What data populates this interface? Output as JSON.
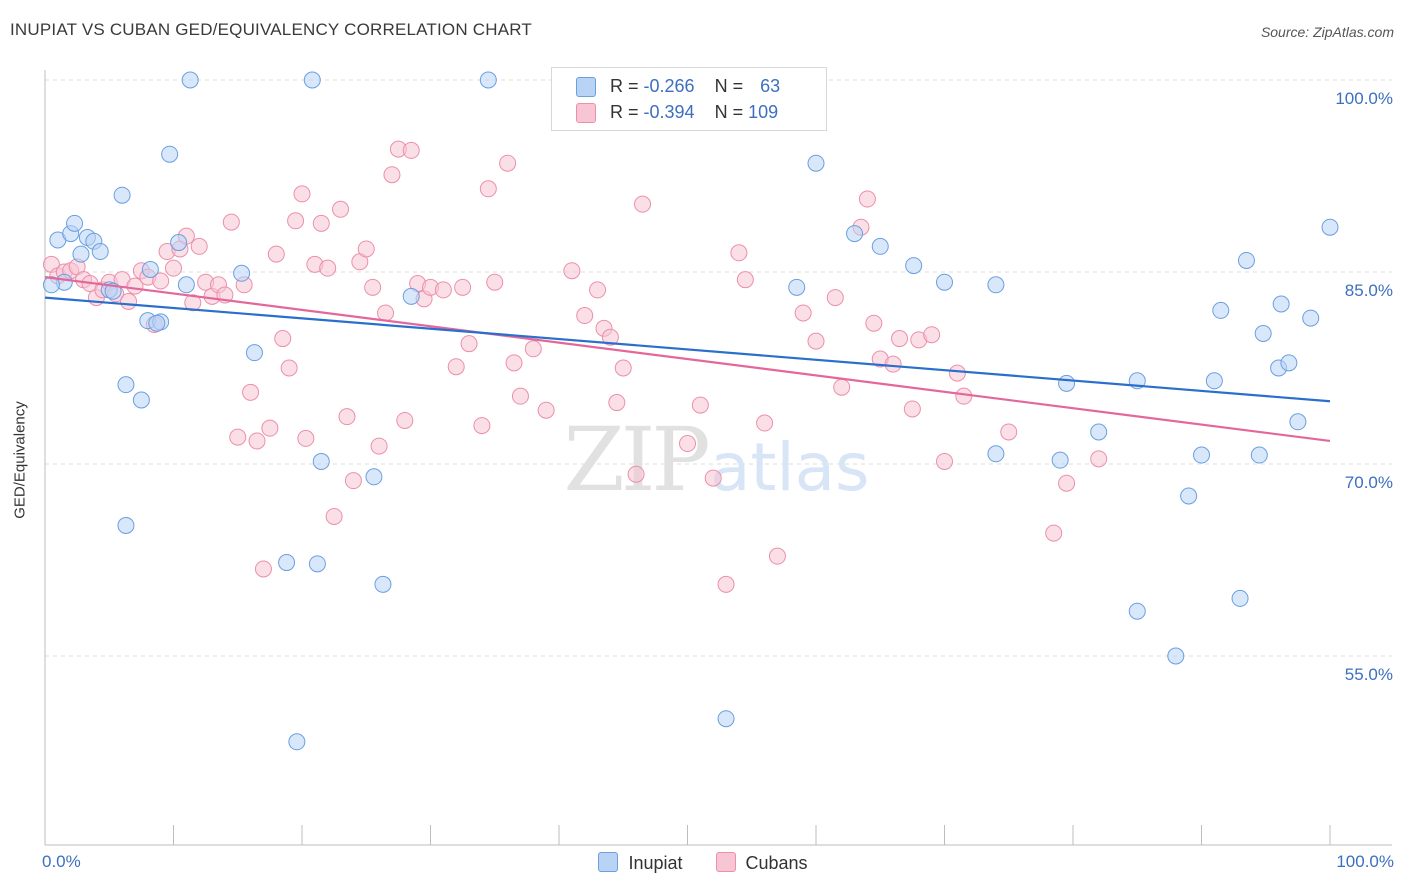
{
  "title": "INUPIAT VS CUBAN GED/EQUIVALENCY CORRELATION CHART",
  "source": "Source: ZipAtlas.com",
  "watermark": {
    "zip": "ZIP",
    "atlas": "atlas"
  },
  "legend": {
    "rows": [
      {
        "r_label": "R = ",
        "r_value": "-0.266",
        "n_label": "N = ",
        "n_value": "63"
      },
      {
        "r_label": "R = ",
        "r_value": "-0.394",
        "n_label": "N = ",
        "n_value": "109"
      }
    ]
  },
  "colors": {
    "inupiat_fill": "#b9d3f5",
    "inupiat_stroke": "#6a9fe0",
    "inupiat_line": "#2a6fcc",
    "cubans_fill": "#f8c5d4",
    "cubans_stroke": "#ec8fab",
    "cubans_line": "#e4679a",
    "axis_text": "#3d6fbf",
    "grid": "#dcdcdc"
  },
  "chart_data": {
    "type": "scatter",
    "xlabel": "",
    "ylabel": "GED/Equivalency",
    "xlim": [
      0,
      100
    ],
    "ylim": [
      40,
      101
    ],
    "x_tick_labels": [
      "0.0%",
      "100.0%"
    ],
    "y_ticks": [
      55,
      70,
      85,
      100
    ],
    "y_tick_labels": [
      "55.0%",
      "70.0%",
      "85.0%",
      "100.0%"
    ],
    "grid": true,
    "legend_position": "top-center",
    "series": [
      {
        "name": "Inupiat",
        "r": -0.266,
        "n": 63,
        "trend": {
          "x": [
            0,
            100
          ],
          "y": [
            83.0,
            74.9
          ]
        },
        "points": [
          [
            1.0,
            87.5
          ],
          [
            1.5,
            84.2
          ],
          [
            2.0,
            88.0
          ],
          [
            2.3,
            88.8
          ],
          [
            2.8,
            86.4
          ],
          [
            3.3,
            87.7
          ],
          [
            3.8,
            87.4
          ],
          [
            4.3,
            86.6
          ],
          [
            5.0,
            83.6
          ],
          [
            5.3,
            83.5
          ],
          [
            6.0,
            91.0
          ],
          [
            6.3,
            76.2
          ],
          [
            7.5,
            75.0
          ],
          [
            8.0,
            81.2
          ],
          [
            8.2,
            85.2
          ],
          [
            9.0,
            81.1
          ],
          [
            9.7,
            94.2
          ],
          [
            10.4,
            87.3
          ],
          [
            11.0,
            84.0
          ],
          [
            11.3,
            100.0
          ],
          [
            6.3,
            65.2
          ],
          [
            15.3,
            84.9
          ],
          [
            16.3,
            78.7
          ],
          [
            18.8,
            62.3
          ],
          [
            19.6,
            48.3
          ],
          [
            20.8,
            100.0
          ],
          [
            21.5,
            70.2
          ],
          [
            21.2,
            62.2
          ],
          [
            25.6,
            69.0
          ],
          [
            26.3,
            60.6
          ],
          [
            28.5,
            83.1
          ],
          [
            34.5,
            100.0
          ],
          [
            53.0,
            50.1
          ],
          [
            58.5,
            83.8
          ],
          [
            60.0,
            93.5
          ],
          [
            63.0,
            88.0
          ],
          [
            65.0,
            87.0
          ],
          [
            67.6,
            85.5
          ],
          [
            70.0,
            84.2
          ],
          [
            74.0,
            84.0
          ],
          [
            74.0,
            70.8
          ],
          [
            79.0,
            70.3
          ],
          [
            79.5,
            76.3
          ],
          [
            82.0,
            72.5
          ],
          [
            85.0,
            76.5
          ],
          [
            85.0,
            58.5
          ],
          [
            88.0,
            55.0
          ],
          [
            89.0,
            67.5
          ],
          [
            90.0,
            70.7
          ],
          [
            91.0,
            76.5
          ],
          [
            91.5,
            82.0
          ],
          [
            93.0,
            59.5
          ],
          [
            93.5,
            85.9
          ],
          [
            94.5,
            70.7
          ],
          [
            94.8,
            80.2
          ],
          [
            96.0,
            77.5
          ],
          [
            96.2,
            82.5
          ],
          [
            96.8,
            77.9
          ],
          [
            97.5,
            73.3
          ],
          [
            98.5,
            81.4
          ],
          [
            100.0,
            88.5
          ],
          [
            0.5,
            84.0
          ],
          [
            8.7,
            81.0
          ]
        ]
      },
      {
        "name": "Cubans",
        "r": -0.394,
        "n": 109,
        "trend": {
          "x": [
            0,
            100
          ],
          "y": [
            84.6,
            71.8
          ]
        },
        "points": [
          [
            0.5,
            85.6
          ],
          [
            1.0,
            84.7
          ],
          [
            1.5,
            85.0
          ],
          [
            2.0,
            85.1
          ],
          [
            2.5,
            85.4
          ],
          [
            3.0,
            84.4
          ],
          [
            3.5,
            84.1
          ],
          [
            4.0,
            83.0
          ],
          [
            4.5,
            83.6
          ],
          [
            5.0,
            84.2
          ],
          [
            5.5,
            83.3
          ],
          [
            6.0,
            84.4
          ],
          [
            6.5,
            82.7
          ],
          [
            7.0,
            83.9
          ],
          [
            7.5,
            85.1
          ],
          [
            8.0,
            84.6
          ],
          [
            8.5,
            80.9
          ],
          [
            9.0,
            84.3
          ],
          [
            9.5,
            86.6
          ],
          [
            10.0,
            85.3
          ],
          [
            10.5,
            86.8
          ],
          [
            11.0,
            87.8
          ],
          [
            11.5,
            82.6
          ],
          [
            12.0,
            87.0
          ],
          [
            12.5,
            84.2
          ],
          [
            13.0,
            83.1
          ],
          [
            13.5,
            84.0
          ],
          [
            14.0,
            83.2
          ],
          [
            14.5,
            88.9
          ],
          [
            15.0,
            72.1
          ],
          [
            15.5,
            84.0
          ],
          [
            16.0,
            75.6
          ],
          [
            16.5,
            71.8
          ],
          [
            17.0,
            61.8
          ],
          [
            17.5,
            72.8
          ],
          [
            18.0,
            86.4
          ],
          [
            18.5,
            79.8
          ],
          [
            19.0,
            77.5
          ],
          [
            19.5,
            89.0
          ],
          [
            20.0,
            91.1
          ],
          [
            20.3,
            72.0
          ],
          [
            21.0,
            85.6
          ],
          [
            21.5,
            88.8
          ],
          [
            22.0,
            85.3
          ],
          [
            22.5,
            65.9
          ],
          [
            23.0,
            89.9
          ],
          [
            23.5,
            73.7
          ],
          [
            24.0,
            68.7
          ],
          [
            24.5,
            85.8
          ],
          [
            25.0,
            86.8
          ],
          [
            25.5,
            83.8
          ],
          [
            26.0,
            71.4
          ],
          [
            26.5,
            81.8
          ],
          [
            27.0,
            92.6
          ],
          [
            27.5,
            94.6
          ],
          [
            28.0,
            73.4
          ],
          [
            28.5,
            94.5
          ],
          [
            29.0,
            84.1
          ],
          [
            29.5,
            82.9
          ],
          [
            30.0,
            83.8
          ],
          [
            31.0,
            83.6
          ],
          [
            32.0,
            77.6
          ],
          [
            32.5,
            83.8
          ],
          [
            33.0,
            79.4
          ],
          [
            34.0,
            73.0
          ],
          [
            34.5,
            91.5
          ],
          [
            35.0,
            84.2
          ],
          [
            36.0,
            93.5
          ],
          [
            36.5,
            77.9
          ],
          [
            37.0,
            75.3
          ],
          [
            38.0,
            79.0
          ],
          [
            39.0,
            74.2
          ],
          [
            41.0,
            85.1
          ],
          [
            42.0,
            81.6
          ],
          [
            43.0,
            83.6
          ],
          [
            43.5,
            80.6
          ],
          [
            44.0,
            79.9
          ],
          [
            44.5,
            74.8
          ],
          [
            45.0,
            77.5
          ],
          [
            46.0,
            69.2
          ],
          [
            46.5,
            90.3
          ],
          [
            50.0,
            71.6
          ],
          [
            51.0,
            74.6
          ],
          [
            52.0,
            68.9
          ],
          [
            53.0,
            60.6
          ],
          [
            54.0,
            86.5
          ],
          [
            54.5,
            84.4
          ],
          [
            56.0,
            73.2
          ],
          [
            57.0,
            62.8
          ],
          [
            59.0,
            81.8
          ],
          [
            60.0,
            79.6
          ],
          [
            61.5,
            83.0
          ],
          [
            62.0,
            76.0
          ],
          [
            63.5,
            88.5
          ],
          [
            64.0,
            90.7
          ],
          [
            64.5,
            81.0
          ],
          [
            65.0,
            78.2
          ],
          [
            66.0,
            77.8
          ],
          [
            66.5,
            79.8
          ],
          [
            67.5,
            74.3
          ],
          [
            68.0,
            79.7
          ],
          [
            69.0,
            80.1
          ],
          [
            70.0,
            70.2
          ],
          [
            71.0,
            77.1
          ],
          [
            71.5,
            75.3
          ],
          [
            75.0,
            72.5
          ],
          [
            78.5,
            64.6
          ],
          [
            79.5,
            68.5
          ],
          [
            82.0,
            70.4
          ]
        ]
      }
    ]
  }
}
